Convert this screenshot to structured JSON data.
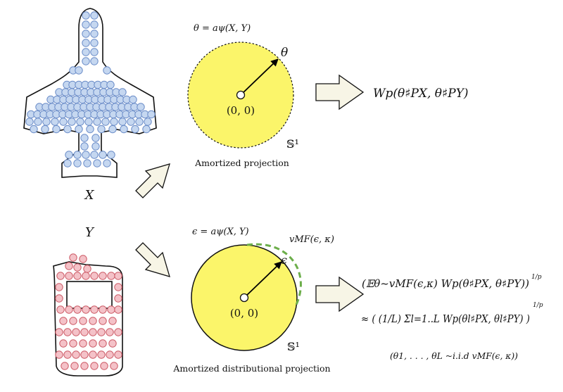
{
  "top": {
    "x_label": "X",
    "theta_eq": "θ = aψ(X, Y)",
    "theta": "θ",
    "origin": "(0, 0)",
    "sphere": "𝕊¹",
    "caption": "Amortized projection",
    "result": "Wp(θ♯PX, θ♯PY)"
  },
  "bottom": {
    "y_label": "Y",
    "eps_eq": "ϵ = aψ(X, Y)",
    "vmf": "vMF(ϵ, κ)",
    "eps": "ϵ",
    "origin": "(0, 0)",
    "sphere": "𝕊¹",
    "caption": "Amortized distributional projection",
    "formula_line1": "(𝔼θ∼vMF(ϵ,κ) Wp(θ♯PX, θ♯PY))",
    "formula_line1_exp": "1/p",
    "formula_line2": "≈ ( (1/L) Σl=1..L Wp(θl♯PX, θl♯PY) )",
    "formula_line2_exp": "1/p",
    "formula_line3": "(θ1, . . . , θL ~i.i.d vMF(ϵ, κ))"
  },
  "colors": {
    "blue_point_fill": "#c5d7f0",
    "blue_point_stroke": "#6a8cc8",
    "red_point_fill": "#f4c2c8",
    "red_point_stroke": "#cc5a66",
    "disk_fill": "#fbf56a",
    "vmf_arc": "#6cae4a",
    "arrow_fill": "#f7f5e6"
  }
}
